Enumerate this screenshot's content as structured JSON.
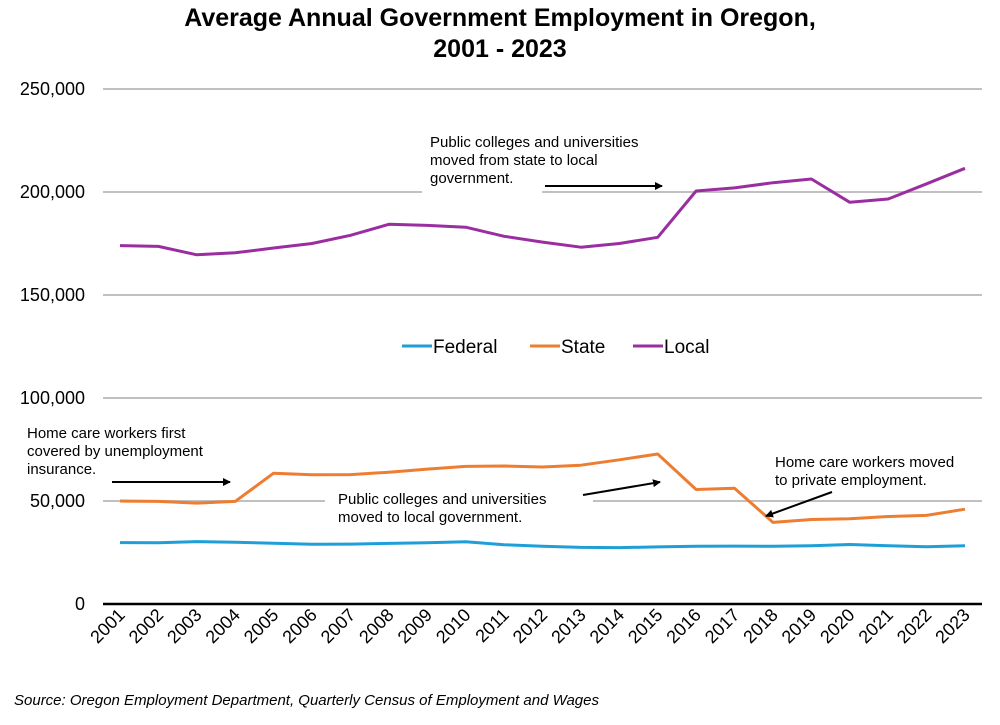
{
  "chart_data": {
    "type": "line",
    "title": "Average Annual Government Employment in Oregon, 2001 - 2023",
    "title_lines": [
      "Average Annual Government Employment in Oregon,",
      "2001 - 2023"
    ],
    "xlabel": "",
    "ylabel": "",
    "ylim": [
      0,
      250000
    ],
    "yticks": [
      0,
      50000,
      100000,
      150000,
      200000,
      250000
    ],
    "ytick_labels": [
      "0",
      "50,000",
      "100,000",
      "150,000",
      "200,000",
      "250,000"
    ],
    "grid": true,
    "legend_position": "center",
    "x": [
      "2001",
      "2002",
      "2003",
      "2004",
      "2005",
      "2006",
      "2007",
      "2008",
      "2009",
      "2010",
      "2011",
      "2012",
      "2013",
      "2014",
      "2015",
      "2016",
      "2017",
      "2018",
      "2019",
      "2020",
      "2021",
      "2022",
      "2023"
    ],
    "series": [
      {
        "name": "Federal",
        "color": "#1f9fd8",
        "values": [
          29800,
          29700,
          30300,
          30000,
          29500,
          29000,
          29100,
          29400,
          29700,
          30200,
          28800,
          28000,
          27500,
          27400,
          27700,
          28000,
          28100,
          28000,
          28300,
          28900,
          28300,
          27800,
          28300
        ]
      },
      {
        "name": "State",
        "color": "#ed7d31",
        "values": [
          50000,
          49800,
          49000,
          49800,
          63500,
          62700,
          62800,
          64000,
          65500,
          66800,
          67000,
          66500,
          67400,
          70000,
          72800,
          55600,
          56200,
          39600,
          41000,
          41400,
          42500,
          43000,
          46000
        ]
      },
      {
        "name": "Local",
        "color": "#9a2ea0",
        "values": [
          174000,
          173600,
          169500,
          170500,
          172800,
          175000,
          179000,
          184300,
          183800,
          182900,
          178500,
          175700,
          173200,
          175000,
          178000,
          200500,
          202000,
          204500,
          206300,
          195000,
          196600,
          204000,
          211500
        ]
      }
    ],
    "annotations": [
      {
        "id": "local-shift",
        "lines": [
          "Public colleges and universities",
          "moved from state to local",
          "government."
        ]
      },
      {
        "id": "homecare-first",
        "lines": [
          "Home care workers first",
          "covered by unemployment",
          "insurance."
        ]
      },
      {
        "id": "state-shift",
        "lines": [
          "Public colleges and universities",
          "moved to local government."
        ]
      },
      {
        "id": "homecare-moved",
        "lines": [
          "Home care workers moved",
          "to private employment."
        ]
      }
    ],
    "source": "Source: Oregon Employment Department, Quarterly Census of Employment and Wages"
  }
}
